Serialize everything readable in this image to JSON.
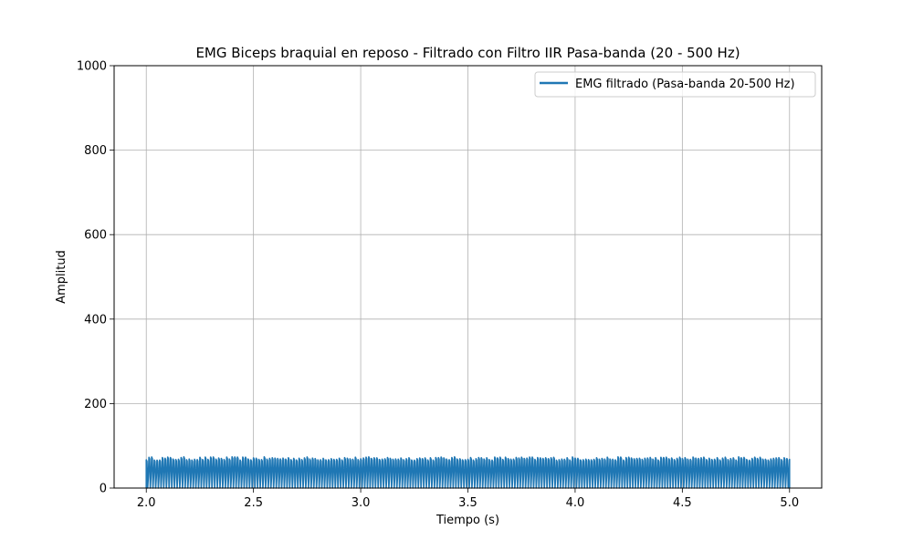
{
  "chart_data": {
    "type": "line",
    "title": "EMG Biceps braquial en reposo - Filtrado con Filtro IIR Pasa-banda (20 - 500 Hz)",
    "xlabel": "Tiempo (s)",
    "ylabel": "Amplitud",
    "xlim": [
      1.85,
      5.15
    ],
    "ylim": [
      0,
      1000
    ],
    "xticks": [
      2.0,
      2.5,
      3.0,
      3.5,
      4.0,
      4.5,
      5.0
    ],
    "xtick_labels": [
      "2.0",
      "2.5",
      "3.0",
      "3.5",
      "4.0",
      "4.5",
      "5.0"
    ],
    "yticks": [
      0,
      200,
      400,
      600,
      800,
      1000
    ],
    "ytick_labels": [
      "0",
      "200",
      "400",
      "600",
      "800",
      "1000"
    ],
    "grid": true,
    "legend_position": "top-right",
    "series": [
      {
        "name": "EMG filtrado (Pasa-banda 20-500 Hz)",
        "color": "#1f77b4",
        "x_start": 2.0,
        "x_end": 5.0,
        "pulse_count": 240,
        "baseline": 0,
        "peak_min": 66,
        "peak_max": 74
      }
    ]
  }
}
